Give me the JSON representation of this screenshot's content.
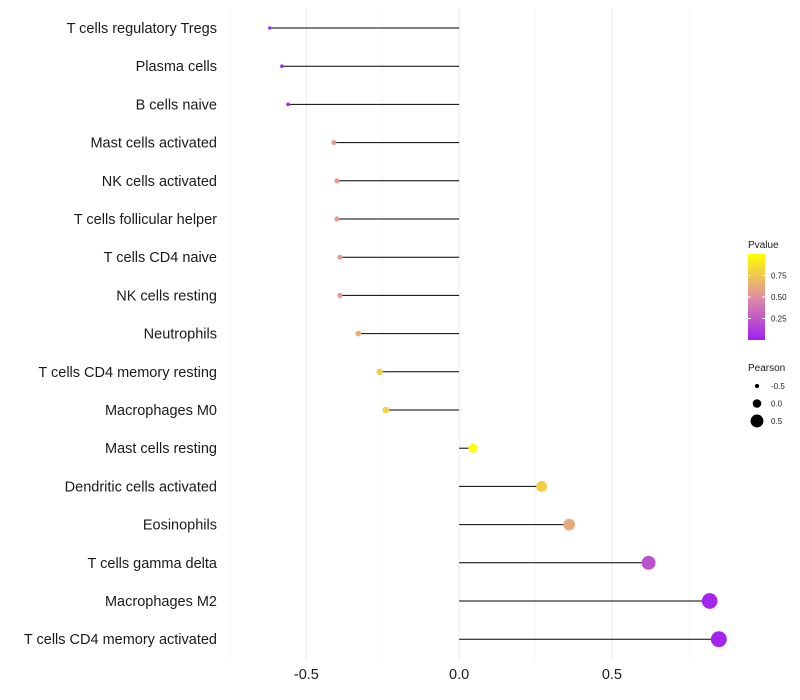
{
  "chart_data": {
    "type": "lollipop",
    "categories": [
      "T cells regulatory  Tregs",
      "Plasma cells",
      "B cells naive",
      "Mast cells activated",
      "NK cells activated",
      "T cells follicular helper",
      "T cells CD4 naive",
      "NK cells resting",
      "Neutrophils",
      "T cells CD4 memory resting",
      "Macrophages M0",
      "Mast cells resting",
      "Dendritic cells activated",
      "Eosinophils",
      "T cells gamma delta",
      "Macrophages M2",
      "T cells CD4 memory activated"
    ],
    "values": [
      -0.62,
      -0.58,
      -0.56,
      -0.41,
      -0.4,
      -0.4,
      -0.39,
      -0.39,
      -0.33,
      -0.26,
      -0.24,
      0.045,
      0.27,
      0.36,
      0.62,
      0.82,
      0.85
    ],
    "pvalues": [
      0.02,
      0.02,
      0.03,
      0.55,
      0.55,
      0.55,
      0.55,
      0.55,
      0.65,
      0.78,
      0.8,
      0.99,
      0.78,
      0.62,
      0.22,
      0.02,
      0.02
    ],
    "x_ticks": [
      -0.5,
      0.0,
      0.5
    ],
    "x_tick_labels": [
      "-0.5",
      "0.0",
      "0.5"
    ],
    "xlim": [
      -0.75,
      0.88
    ],
    "stem_origin": 0.0,
    "color_legend": {
      "title": "Pvalue",
      "ticks": [
        0.25,
        0.5,
        0.75
      ],
      "tick_labels": [
        "0.25",
        "0.50",
        "0.75"
      ],
      "range": [
        0.0,
        1.0
      ],
      "color_low": "#A020F0",
      "color_high": "#FFFF00"
    },
    "size_legend": {
      "title": "Pearson",
      "values": [
        -0.5,
        0.0,
        0.5
      ],
      "labels": [
        "-0.5",
        "0.0",
        "0.5"
      ]
    },
    "xlabel": "",
    "ylabel": "",
    "grid": true
  }
}
